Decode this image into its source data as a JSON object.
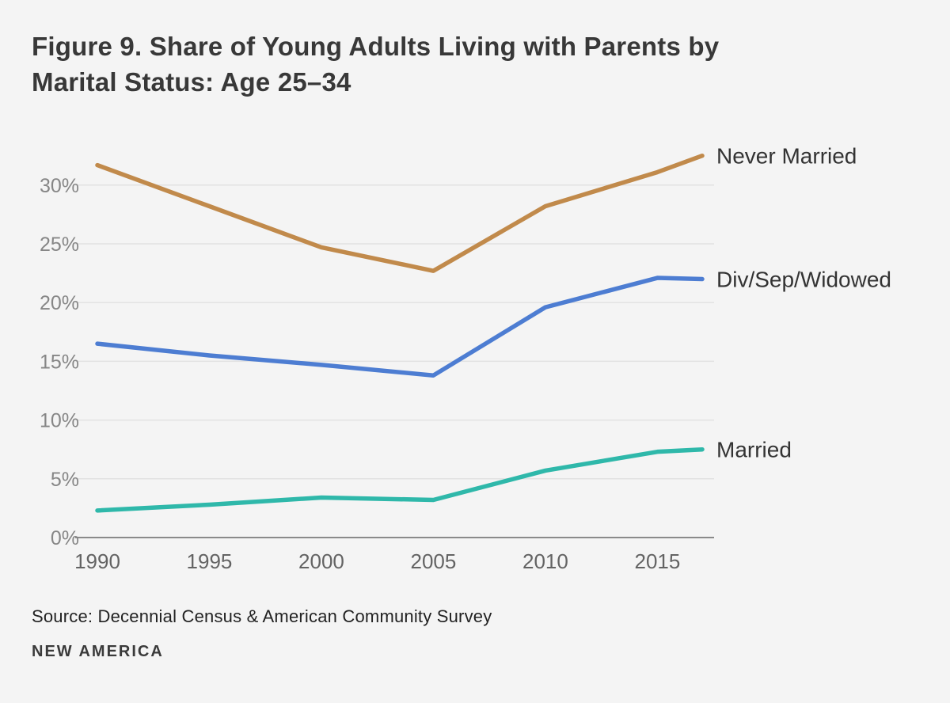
{
  "page": {
    "background_color": "#f4f4f4"
  },
  "header": {
    "title_line1": "Figure 9. Share of Young Adults Living with Parents by",
    "title_line2": "Marital Status: Age 25–34"
  },
  "chart_data": {
    "type": "line",
    "title": "Figure 9. Share of Young Adults Living with Parents by Marital Status: Age 25–34",
    "x": [
      1990,
      1995,
      2000,
      2005,
      2010,
      2015,
      2017
    ],
    "series": [
      {
        "name": "Never Married",
        "color": "#c18a4b",
        "values": [
          31.7,
          28.2,
          24.7,
          22.7,
          28.2,
          31.1,
          32.5
        ]
      },
      {
        "name": "Div/Sep/Widowed",
        "color": "#4d7dd2",
        "values": [
          16.5,
          15.5,
          14.7,
          13.8,
          19.6,
          22.1,
          22.0
        ]
      },
      {
        "name": "Married",
        "color": "#2fb8aa",
        "values": [
          2.3,
          2.8,
          3.4,
          3.2,
          5.7,
          7.3,
          7.5
        ]
      }
    ],
    "x_ticks": [
      1990,
      1995,
      2000,
      2005,
      2010,
      2015
    ],
    "y_ticks": [
      0,
      5,
      10,
      15,
      20,
      25,
      30
    ],
    "y_tick_suffix": "%",
    "xlim": [
      1990,
      2017
    ],
    "ylim": [
      0,
      33.5
    ],
    "grid": true,
    "legend_position": "right-of-line-end",
    "colors": {
      "gridline": "#e2e2e2",
      "axis_line": "#8a8a8a",
      "y_tick": "#868686",
      "x_tick": "#636363",
      "series_label": "#333333"
    }
  },
  "footer": {
    "source": "Source: Decennial Census & American Community Survey",
    "logo": "NEW AMERICA"
  }
}
